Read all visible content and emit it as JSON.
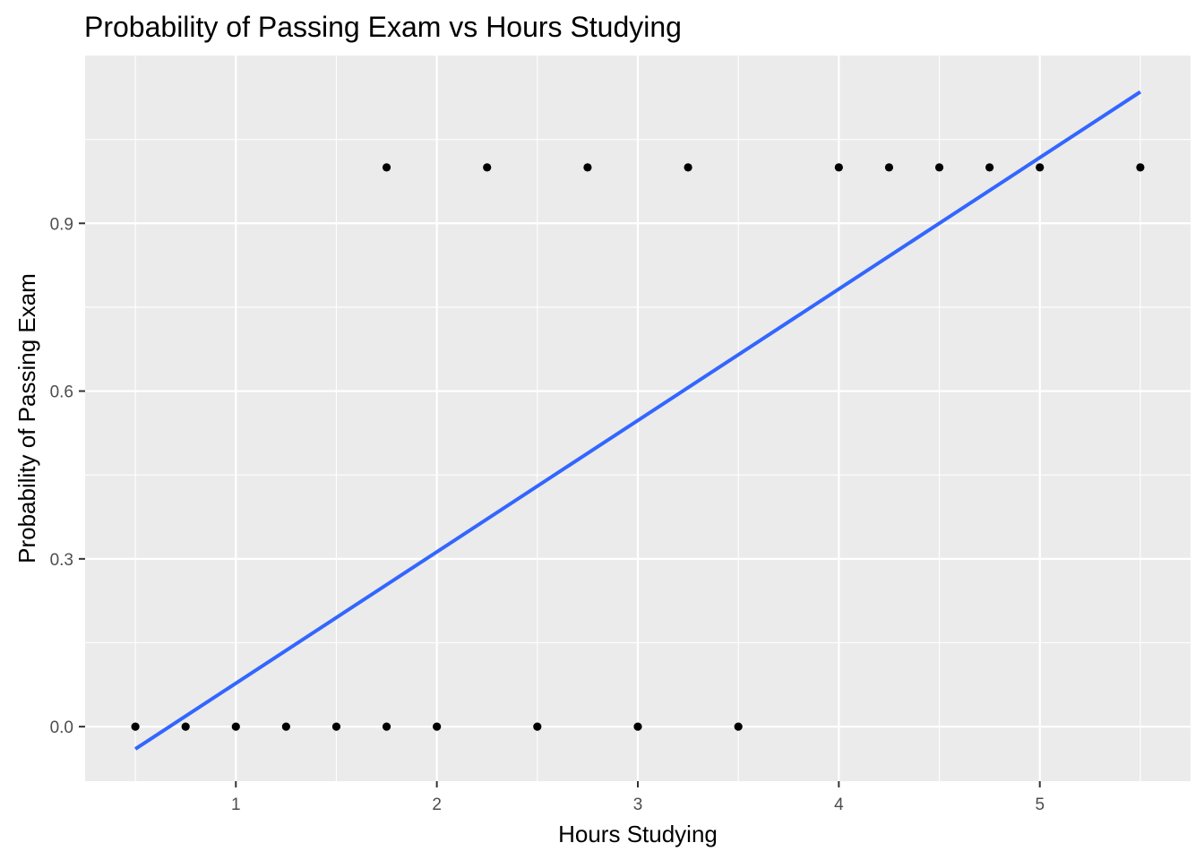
{
  "chart_data": {
    "type": "scatter",
    "title": "Probability of Passing Exam vs Hours Studying",
    "xlabel": "Hours Studying",
    "ylabel": "Probability of Passing Exam",
    "xlim": [
      0.25,
      5.75
    ],
    "ylim": [
      -0.0975,
      1.2
    ],
    "x_ticks": [
      1,
      2,
      3,
      4,
      5
    ],
    "x_tick_labels": [
      "1",
      "2",
      "3",
      "4",
      "5"
    ],
    "y_ticks": [
      0.0,
      0.3,
      0.6,
      0.9
    ],
    "y_tick_labels": [
      "0.0",
      "0.3",
      "0.6",
      "0.9"
    ],
    "grid": true,
    "legend": "none",
    "colors": {
      "panel_background": "#ebebeb",
      "grid": "#ffffff",
      "points": "#000000",
      "fit_line": "#3366ff"
    },
    "series": [
      {
        "type": "scatter",
        "x": [
          0.5,
          0.75,
          1.0,
          1.25,
          1.5,
          1.75,
          1.75,
          2.0,
          2.25,
          2.5,
          2.75,
          3.0,
          3.25,
          3.5,
          4.0,
          4.25,
          4.5,
          4.75,
          5.0,
          5.5
        ],
        "y": [
          0,
          0,
          0,
          0,
          0,
          0,
          1,
          0,
          1,
          0,
          1,
          0,
          1,
          0,
          1,
          1,
          1,
          1,
          1,
          1
        ]
      },
      {
        "type": "line",
        "x": [
          0.5,
          5.5
        ],
        "y": [
          -0.04,
          1.135
        ]
      }
    ]
  }
}
